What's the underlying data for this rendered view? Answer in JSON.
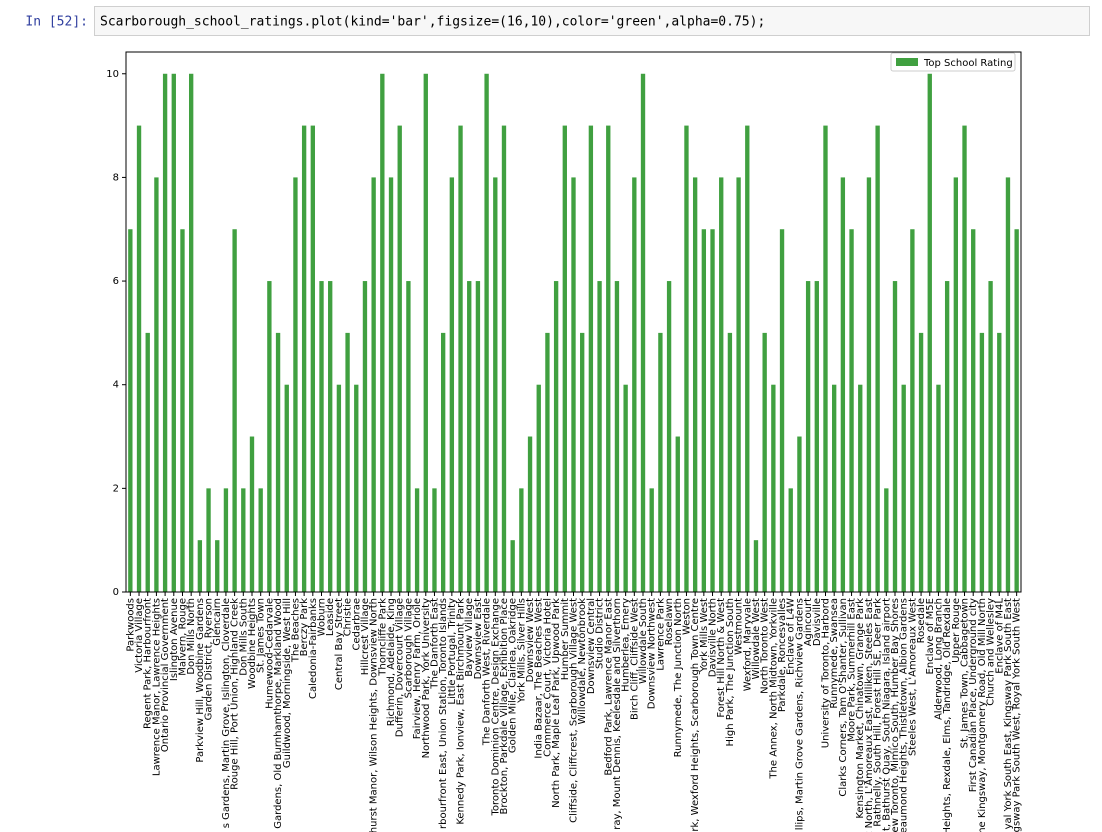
{
  "cell": {
    "prompt": "In [52]:",
    "code": "Scarborough_school_ratings.plot(kind='bar',figsize=(16,10),color='green',alpha=0.75);"
  },
  "chart_data": {
    "type": "bar",
    "categories": [
      "Parkwoods",
      "Victoria Village",
      "Regent Park, Harbourfront",
      "Lawrence Manor, Lawrence Heights",
      "Ontario Provincial Government",
      "Islington Avenue",
      "Malvern, Rouge",
      "Don Mills North",
      "Parkview Hill, Woodbine Gardens",
      "Garden District, Ryerson",
      "Glencairn",
      "s Gardens, Martin Grove, Islington, Cloverdale",
      "Rouge Hill, Port Union, Highland Creek",
      "Don Mills South",
      "Woodbine Heights",
      "St. James Town",
      "Humewood-Cedarvale",
      "Gardens, Old Burnhamthorpe, Markland Wood",
      "Guildwood, Morningside, West Hill",
      "The Beaches",
      "Berczy Park",
      "Caledonia-Fairbanks",
      "Woburn",
      "Leaside",
      "Central Bay Street",
      "Christie",
      "Cedarbrae",
      "Hillcrest Village",
      "hurst Manor, Wilson Heights, Downsview North",
      "Thorncliffe Park",
      "Richmond, Adelaide, King",
      "Dufferin, Dovercourt Village",
      "Scarborough Village",
      "Fairview, Henry Farm, Oriole",
      "Northwood Park, York University",
      "The Danforth East",
      "rbourfront East, Union Station, Toronto Islands",
      "Little Portugal, Trinity",
      "Kennedy Park, Ionview, East Birchmount Park",
      "Bayview Village",
      "Downsview East",
      "The Danforth West, Riverdale",
      "Toronto Dominion Centre, Design Exchange",
      "Brockton, Parkdale Village, Exhibition Place",
      "Golden Mile, Clairlea, Oakridge",
      "York Mills, Silver Hills",
      "Downsview West",
      "India Bazaar, The Beaches West",
      "Commerce Court, Victoria Hotel",
      "North Park, Maple Leaf Park, Upwood Park",
      "Humber Summit",
      "Cliffside, Cliffcrest, Scarborough Village West",
      "Willowdale, Newtonbrook",
      "Downsview Central",
      "Studio District",
      "Bedford Park, Lawrence Manor East",
      "ray, Mount Dennis, Keelesdale and Silverthorn",
      "Humberlea, Emery",
      "Birch Cliff, Cliffside West",
      "Willowdale South",
      "Downsview Northwest",
      "Lawrence Park",
      "Roselawn",
      "Runnymede, The Junction North",
      "Weston",
      "rk, Wexford Heights, Scarborough Town Centre",
      "York Mills West",
      "Davisville North",
      "Forest Hill North & West",
      "High Park, The Junction South",
      "Westmount",
      "Wexford, Maryvale",
      "Willowdale West",
      "North Toronto West",
      "The Annex, North Midtown, Yorkville",
      "Parkdale, Roncesvalles",
      "Enclave of L4W",
      "llips, Martin Grove Gardens, Richview Gardens",
      "Agincourt",
      "Davisville",
      "University of Toronto, Harbord",
      "Runnymede, Swansea",
      "Clarks Corners, Tam O'Shanter, Sullivan",
      "Moore Park, Summerhill East",
      "Kensington Market, Chinatown, Grange Park",
      "gincourt North, L'Amoreaux East, Milliken, Steeles East",
      "Rathnelly, South Hill, Forest Hill SE, Deer Park",
      "t, Bathurst Quay, South Niagara, Island airport",
      "New Toronto, Mimico South, Humber Bay Shores",
      "eaumond Heights, Thistletown, Albion Gardens",
      "Steeles West, L'Amoreaux West",
      "Rosedale",
      "Enclave of M5E",
      "Alderwood, Long Branch",
      "Heights, Rexdale, Elms, Tandridge, Old Rexdale",
      "Upper Rouge",
      "St. James Town, Cabbagetown",
      "First Canadian Place, Underground city",
      "he Kingsway, Montgomery Road, Old Mill North",
      "Church and Wellesley",
      "Enclave of M4L",
      "yal York South East, Kingsway Park South East",
      "ngsway Park South West, Royal York South West"
    ],
    "series": [
      {
        "name": "Top School Rating",
        "color": "#40a040",
        "values": [
          7,
          9,
          5,
          8,
          10,
          10,
          7,
          10,
          1,
          2,
          1,
          2,
          7,
          2,
          3,
          2,
          6,
          5,
          4,
          8,
          9,
          9,
          6,
          6,
          4,
          5,
          4,
          6,
          8,
          10,
          8,
          9,
          6,
          2,
          10,
          2,
          5,
          8,
          9,
          6,
          6,
          10,
          8,
          9,
          1,
          2,
          3,
          4,
          5,
          6,
          9,
          8,
          5,
          9,
          6,
          9,
          6,
          4,
          8,
          10,
          2,
          5,
          6,
          3,
          9,
          8,
          7,
          7,
          8,
          5,
          8,
          9,
          1,
          5,
          4,
          7,
          2,
          3,
          6,
          6,
          9,
          4,
          8,
          7,
          4,
          8,
          9,
          2,
          6,
          4,
          7,
          5,
          10,
          4,
          6,
          8,
          9,
          7,
          5,
          6,
          5,
          8,
          7
        ]
      }
    ],
    "ylim": [
      0,
      10.42
    ],
    "yticks": [
      0,
      2,
      4,
      6,
      8,
      10
    ],
    "legend": "upper right"
  }
}
